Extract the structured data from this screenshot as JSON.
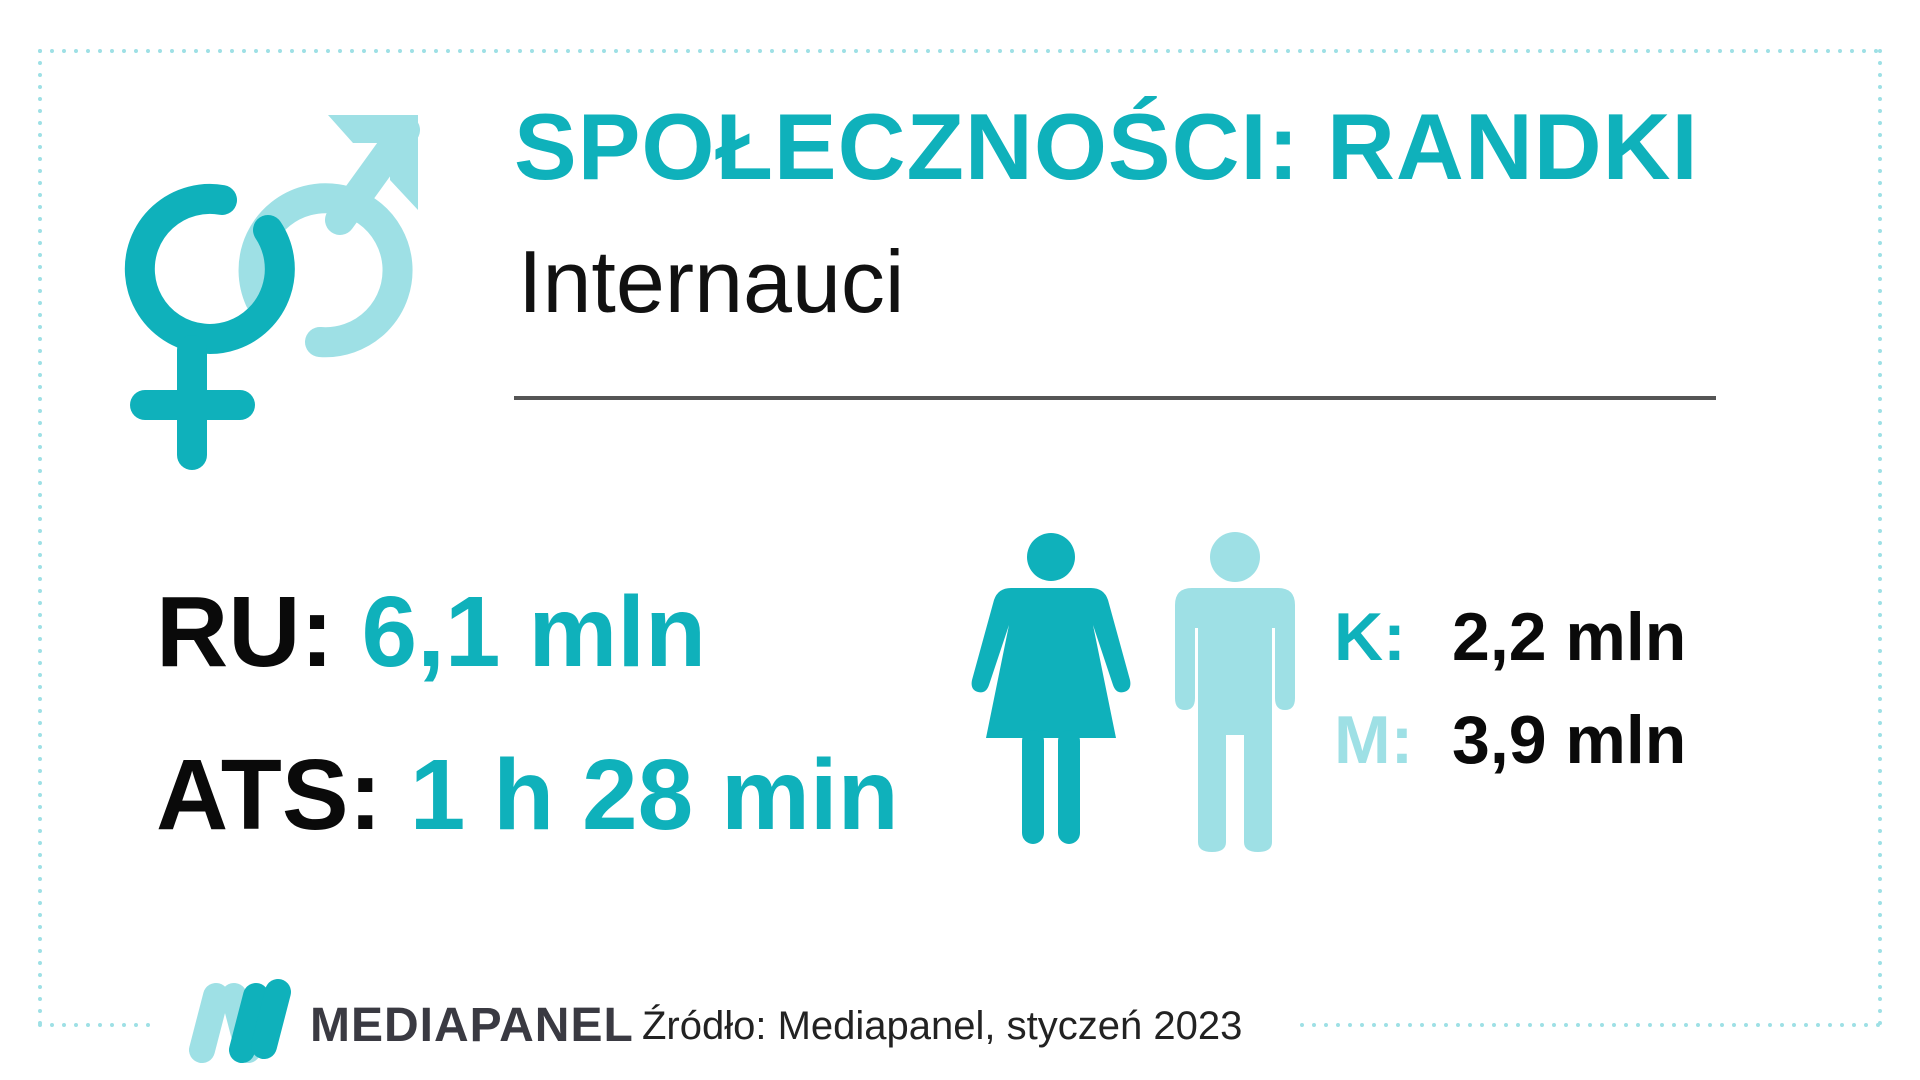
{
  "header": {
    "title": "SPOŁECZNOŚCI: RANDKI",
    "subtitle": "Internauci"
  },
  "stats": {
    "ru_label": "RU:",
    "ru_value": "6,1 mln",
    "ats_label": "ATS:",
    "ats_value": "1 h 28 min"
  },
  "gender": {
    "female_label": "K:",
    "female_value": "2,2 mln",
    "male_label": "M:",
    "male_value": "3,9 mln"
  },
  "footer": {
    "brand": "MEDIAPANEL",
    "source": "Źródło: Mediapanel, styczeń 2023"
  },
  "icons": {
    "symbol": "gender-symbols-icon",
    "female": "woman-icon",
    "male": "man-icon",
    "logo": "mediapanel-logo-icon"
  },
  "colors": {
    "accent": "#0fb1bb",
    "accent_light": "#9ee0e5",
    "text": "#0a0a0a",
    "frame": "#9ee0e5"
  }
}
